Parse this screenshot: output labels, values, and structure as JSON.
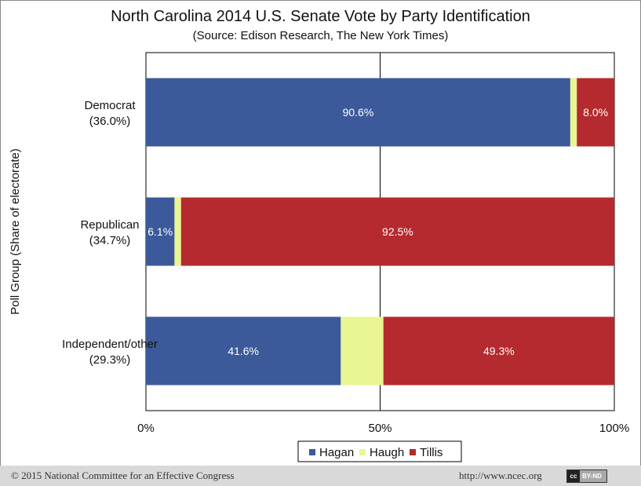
{
  "chart_data": {
    "type": "bar",
    "orientation": "horizontal",
    "stacked": true,
    "title": "North Carolina 2014 U.S. Senate Vote by Party Identification",
    "subtitle": "(Source: Edison Research, The New York Times)",
    "xlabel": "",
    "ylabel": "Poll Group (Share of electorate)",
    "xlim": [
      0,
      100
    ],
    "x_ticks": [
      "0%",
      "50%",
      "100%"
    ],
    "legend_position": "bottom",
    "categories": [
      {
        "name": "Democrat",
        "share": "(36.0%)"
      },
      {
        "name": "Republican",
        "share": "(34.7%)"
      },
      {
        "name": "Independent/other",
        "share": "(29.3%)"
      }
    ],
    "series": [
      {
        "name": "Hagan",
        "color": "#3c5a9a",
        "values": [
          90.6,
          6.1,
          41.6
        ],
        "labels": [
          "90.6%",
          "6.1%",
          "41.6%"
        ]
      },
      {
        "name": "Haugh",
        "color": "#eaf593",
        "values": [
          1.4,
          1.4,
          9.1
        ],
        "labels": [
          "",
          "",
          ""
        ]
      },
      {
        "name": "Tillis",
        "color": "#b52a2e",
        "values": [
          8.0,
          92.5,
          49.3
        ],
        "labels": [
          "8.0%",
          "92.5%",
          "49.3%"
        ]
      }
    ]
  },
  "footer": {
    "copyright": "© 2015 National Committee for an Effective Congress",
    "url": "http://www.ncec.org",
    "license": "BY-ND"
  }
}
